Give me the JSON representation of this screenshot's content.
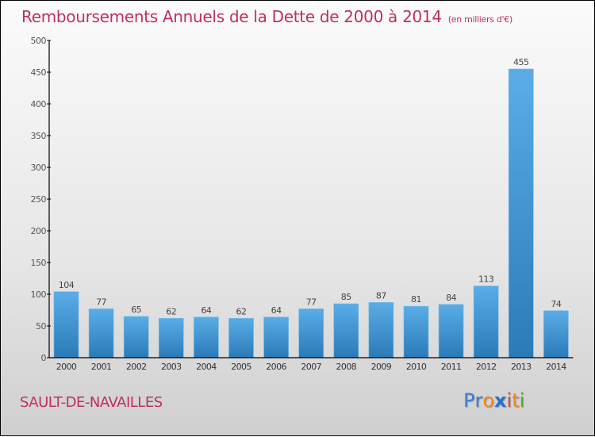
{
  "chart_data": {
    "type": "bar",
    "title": "Remboursements Annuels de la Dette de 2000 à 2014",
    "subtitle": "(en milliers d'€)",
    "xlabel": "",
    "ylabel": "",
    "categories": [
      "2000",
      "2001",
      "2002",
      "2003",
      "2004",
      "2005",
      "2006",
      "2007",
      "2008",
      "2009",
      "2010",
      "2011",
      "2012",
      "2013",
      "2014"
    ],
    "values": [
      104,
      77,
      65,
      62,
      64,
      62,
      64,
      77,
      85,
      87,
      81,
      84,
      113,
      455,
      74
    ],
    "data_labels": [
      "104",
      "77",
      "65",
      "62",
      "64",
      "62",
      "64",
      "77",
      "85",
      "87",
      "81",
      "84",
      "113",
      "455",
      "74"
    ],
    "ylim": [
      0,
      500
    ],
    "yticks": [
      0,
      50,
      100,
      150,
      200,
      250,
      300,
      350,
      400,
      450,
      500
    ],
    "grid": false,
    "legend": "none",
    "bar_color_top": "#5aade6",
    "bar_color_bottom": "#2a7ab8"
  },
  "footer": {
    "commune": "SAULT-DE-NAVAILLES",
    "logo_letters": [
      {
        "ch": "P",
        "color": "#3b7fd0"
      },
      {
        "ch": "r",
        "color": "#3b7fd0"
      },
      {
        "ch": "o",
        "color": "#f08a1c"
      },
      {
        "ch": "x",
        "color": "#2a6fd0"
      },
      {
        "ch": "i",
        "color": "#e8432a"
      },
      {
        "ch": "t",
        "color": "#f08a1c"
      },
      {
        "ch": "i",
        "color": "#5aa83a"
      }
    ]
  },
  "colors": {
    "title": "#c0305a",
    "axis": "#000000",
    "tick_text": "#555555"
  }
}
